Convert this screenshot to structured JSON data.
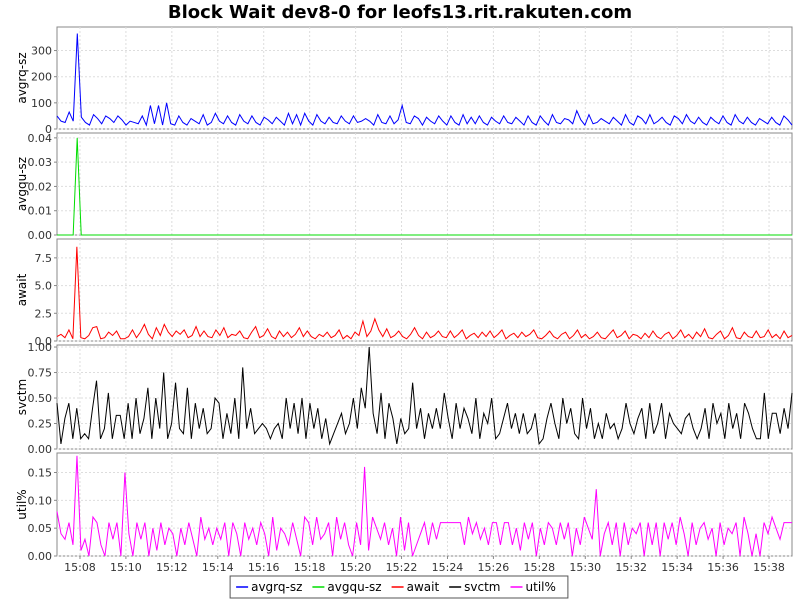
{
  "chart_data": {
    "type": "line",
    "title": "Block Wait dev8-0 for leofs13.rit.rakuten.com",
    "x_tick_labels": [
      "15:08",
      "15:10",
      "15:12",
      "15:14",
      "15:16",
      "15:18",
      "15:20",
      "15:22",
      "15:24",
      "15:26",
      "15:28",
      "15:30",
      "15:32",
      "15:34",
      "15:36",
      "15:38"
    ],
    "x_range": [
      "15:07",
      "15:39"
    ],
    "grid": true,
    "legend_position": "bottom",
    "panels": [
      {
        "name": "avgrq-sz",
        "ylabel": "avgrq-sz",
        "color": "#0000ff",
        "ylim": [
          0,
          390
        ],
        "y_ticks": [
          0,
          100,
          200,
          300
        ],
        "y_tick_labels": [
          "0",
          "100",
          "200",
          "300"
        ],
        "values": [
          50,
          30,
          25,
          65,
          30,
          365,
          45,
          25,
          15,
          55,
          40,
          20,
          50,
          40,
          25,
          50,
          35,
          15,
          30,
          25,
          20,
          50,
          15,
          90,
          20,
          90,
          15,
          100,
          20,
          15,
          50,
          25,
          15,
          40,
          30,
          20,
          55,
          15,
          25,
          60,
          30,
          20,
          50,
          25,
          15,
          55,
          30,
          20,
          50,
          25,
          15,
          45,
          35,
          20,
          45,
          30,
          15,
          60,
          20,
          55,
          15,
          60,
          30,
          15,
          55,
          30,
          20,
          45,
          25,
          20,
          50,
          30,
          20,
          50,
          25,
          30,
          40,
          30,
          15,
          55,
          25,
          20,
          50,
          20,
          35,
          90,
          25,
          20,
          50,
          40,
          15,
          45,
          30,
          20,
          50,
          30,
          15,
          50,
          25,
          15,
          55,
          20,
          45,
          20,
          50,
          25,
          15,
          45,
          30,
          20,
          50,
          25,
          20,
          45,
          30,
          15,
          50,
          25,
          15,
          50,
          30,
          15,
          55,
          25,
          20,
          40,
          35,
          20,
          70,
          35,
          15,
          55,
          20,
          25,
          40,
          30,
          20,
          45,
          30,
          15,
          55,
          25,
          15,
          50,
          40,
          20,
          55,
          20,
          30,
          45,
          25,
          15,
          50,
          40,
          20,
          55,
          30,
          20,
          45,
          25,
          15,
          45,
          30,
          20,
          50,
          25,
          15,
          55,
          30,
          20,
          45,
          25,
          15,
          40,
          30,
          20,
          45,
          25,
          15,
          50,
          35,
          15
        ]
      },
      {
        "name": "avgqu-sz",
        "ylabel": "avgqu-sz",
        "color": "#00dd00",
        "ylim": [
          0,
          0.042
        ],
        "y_ticks": [
          0,
          0.01,
          0.02,
          0.03,
          0.04
        ],
        "y_tick_labels": [
          "0.00",
          "0.01",
          "0.02",
          "0.03",
          "0.04"
        ],
        "values": [
          0,
          0,
          0,
          0,
          0,
          0.04,
          0,
          0,
          0,
          0,
          0,
          0,
          0,
          0,
          0,
          0,
          0,
          0,
          0,
          0,
          0,
          0,
          0,
          0,
          0,
          0,
          0,
          0,
          0,
          0,
          0,
          0,
          0,
          0,
          0,
          0,
          0,
          0,
          0,
          0,
          0,
          0,
          0,
          0,
          0,
          0,
          0,
          0,
          0,
          0,
          0,
          0,
          0,
          0,
          0,
          0,
          0,
          0,
          0,
          0,
          0,
          0,
          0,
          0,
          0,
          0,
          0,
          0,
          0,
          0,
          0,
          0,
          0,
          0,
          0,
          0,
          0,
          0,
          0,
          0,
          0,
          0,
          0,
          0,
          0,
          0,
          0,
          0,
          0,
          0,
          0,
          0,
          0,
          0,
          0,
          0,
          0,
          0,
          0,
          0,
          0,
          0,
          0,
          0,
          0,
          0,
          0,
          0,
          0,
          0,
          0,
          0,
          0,
          0,
          0,
          0,
          0,
          0,
          0,
          0,
          0,
          0,
          0,
          0,
          0,
          0,
          0,
          0,
          0,
          0,
          0,
          0,
          0,
          0,
          0,
          0,
          0,
          0,
          0,
          0,
          0,
          0,
          0,
          0,
          0,
          0,
          0,
          0,
          0,
          0,
          0,
          0,
          0,
          0,
          0,
          0,
          0,
          0,
          0,
          0,
          0,
          0,
          0,
          0,
          0,
          0,
          0,
          0,
          0,
          0,
          0,
          0,
          0,
          0,
          0,
          0,
          0,
          0,
          0,
          0,
          0,
          0,
          0
        ]
      },
      {
        "name": "await",
        "ylabel": "await",
        "color": "#ff0000",
        "ylim": [
          0,
          9.2
        ],
        "y_ticks": [
          0,
          2.5,
          5,
          7.5
        ],
        "y_tick_labels": [
          "0.0",
          "2.5",
          "5.0",
          "7.5"
        ],
        "values": [
          0.4,
          0.6,
          0.3,
          1.0,
          0.2,
          8.5,
          0.3,
          0.2,
          0.5,
          1.2,
          1.3,
          0.2,
          0.3,
          0.8,
          0.5,
          0.9,
          0.2,
          0.2,
          0.4,
          1.0,
          0.3,
          0.8,
          1.5,
          0.6,
          0.2,
          1.2,
          0.5,
          1.5,
          0.8,
          0.4,
          0.9,
          0.6,
          1.0,
          0.3,
          0.5,
          1.3,
          0.4,
          0.9,
          0.4,
          0.3,
          1.0,
          0.5,
          1.2,
          0.3,
          0.6,
          0.5,
          0.9,
          0.3,
          0.2,
          0.8,
          1.3,
          0.3,
          0.5,
          1.1,
          0.4,
          0.2,
          0.9,
          0.4,
          0.8,
          0.3,
          0.6,
          1.2,
          0.4,
          0.9,
          0.4,
          0.2,
          0.6,
          0.4,
          0.8,
          0.3,
          0.5,
          1.0,
          0.2,
          0.5,
          0.2,
          0.8,
          0.5,
          1.8,
          0.4,
          0.9,
          2.0,
          1.0,
          0.4,
          1.1,
          0.3,
          0.5,
          0.9,
          0.4,
          0.2,
          0.6,
          1.2,
          0.5,
          0.2,
          0.8,
          0.3,
          0.5,
          0.9,
          0.4,
          0.3,
          0.9,
          0.3,
          0.6,
          1.0,
          0.2,
          0.5,
          0.7,
          0.3,
          0.8,
          0.4,
          0.9,
          0.3,
          0.6,
          1.0,
          0.2,
          0.5,
          0.7,
          0.3,
          0.8,
          0.4,
          0.6,
          1.0,
          0.3,
          0.2,
          0.5,
          0.9,
          0.4,
          0.2,
          0.6,
          0.8,
          0.2,
          0.5,
          1.0,
          0.3,
          0.6,
          0.2,
          0.4,
          0.8,
          0.3,
          0.2,
          0.6,
          1.0,
          0.3,
          0.5,
          0.9,
          0.2,
          0.6,
          0.5,
          0.2,
          0.7,
          0.3,
          0.9,
          0.4,
          0.2,
          0.6,
          0.8,
          0.2,
          0.5,
          1.0,
          0.3,
          0.6,
          0.2,
          0.8,
          0.4,
          1.1,
          0.3,
          0.2,
          0.6,
          0.9,
          0.2,
          0.5,
          1.2,
          0.3,
          0.2,
          0.8,
          0.4,
          0.3,
          0.9,
          0.3,
          0.4,
          1.0,
          0.3,
          0.6,
          0.2,
          0.9,
          0.3,
          0.5
        ]
      },
      {
        "name": "svctm",
        "ylabel": "svctm",
        "color": "#000000",
        "ylim": [
          0,
          1.02
        ],
        "y_ticks": [
          0,
          0.25,
          0.5,
          0.75,
          1.0
        ],
        "y_tick_labels": [
          "0.00",
          "0.25",
          "0.50",
          "0.75",
          "1.00"
        ],
        "values": [
          0.45,
          0.05,
          0.3,
          0.45,
          0.1,
          0.4,
          0.1,
          0.15,
          0.1,
          0.4,
          0.67,
          0.1,
          0.2,
          0.55,
          0.1,
          0.33,
          0.33,
          0.1,
          0.45,
          0.1,
          0.5,
          0.15,
          0.3,
          0.6,
          0.1,
          0.5,
          0.2,
          0.75,
          0.1,
          0.25,
          0.65,
          0.2,
          0.15,
          0.6,
          0.1,
          0.45,
          0.2,
          0.4,
          0.15,
          0.2,
          0.5,
          0.45,
          0.1,
          0.35,
          0.15,
          0.5,
          0.1,
          0.8,
          0.2,
          0.4,
          0.15,
          0.2,
          0.25,
          0.2,
          0.1,
          0.2,
          0.25,
          0.1,
          0.5,
          0.2,
          0.45,
          0.15,
          0.5,
          0.1,
          0.45,
          0.2,
          0.4,
          0.1,
          0.3,
          0.05,
          0.15,
          0.25,
          0.35,
          0.15,
          0.25,
          0.5,
          0.2,
          0.6,
          0.4,
          1.0,
          0.35,
          0.15,
          0.55,
          0.1,
          0.45,
          0.3,
          0.05,
          0.3,
          0.15,
          0.2,
          0.65,
          0.2,
          0.4,
          0.1,
          0.35,
          0.2,
          0.4,
          0.2,
          0.55,
          0.3,
          0.1,
          0.45,
          0.2,
          0.4,
          0.3,
          0.15,
          0.5,
          0.1,
          0.35,
          0.25,
          0.5,
          0.1,
          0.15,
          0.3,
          0.45,
          0.2,
          0.35,
          0.15,
          0.35,
          0.15,
          0.2,
          0.35,
          0.05,
          0.1,
          0.3,
          0.45,
          0.25,
          0.1,
          0.5,
          0.25,
          0.4,
          0.15,
          0.1,
          0.5,
          0.2,
          0.4,
          0.1,
          0.25,
          0.1,
          0.35,
          0.2,
          0.25,
          0.1,
          0.2,
          0.45,
          0.25,
          0.15,
          0.3,
          0.4,
          0.1,
          0.45,
          0.15,
          0.25,
          0.45,
          0.1,
          0.35,
          0.25,
          0.2,
          0.15,
          0.3,
          0.35,
          0.2,
          0.1,
          0.2,
          0.4,
          0.1,
          0.45,
          0.25,
          0.35,
          0.1,
          0.45,
          0.2,
          0.35,
          0.1,
          0.45,
          0.35,
          0.2,
          0.1,
          0.1,
          0.55,
          0.1,
          0.35,
          0.35,
          0.15,
          0.4,
          0.2,
          0.55
        ]
      },
      {
        "name": "util%",
        "ylabel": "util%",
        "color": "#ff00ff",
        "ylim": [
          0,
          0.185
        ],
        "y_ticks": [
          0,
          0.05,
          0.1,
          0.15
        ],
        "y_tick_labels": [
          "0.00",
          "0.05",
          "0.10",
          "0.15"
        ],
        "values": [
          0.08,
          0.04,
          0.03,
          0.06,
          0.02,
          0.18,
          0.01,
          0.03,
          0.0,
          0.07,
          0.06,
          0.02,
          0.0,
          0.06,
          0.03,
          0.06,
          0.0,
          0.15,
          0.04,
          0.0,
          0.06,
          0.03,
          0.06,
          0.0,
          0.05,
          0.01,
          0.06,
          0.02,
          0.05,
          0.04,
          0.0,
          0.05,
          0.02,
          0.06,
          0.03,
          0.0,
          0.07,
          0.03,
          0.05,
          0.02,
          0.05,
          0.03,
          0.06,
          0.0,
          0.06,
          0.04,
          0.0,
          0.06,
          0.03,
          0.05,
          0.02,
          0.06,
          0.04,
          0.0,
          0.07,
          0.01,
          0.05,
          0.04,
          0.02,
          0.06,
          0.03,
          0.0,
          0.07,
          0.06,
          0.02,
          0.07,
          0.03,
          0.04,
          0.06,
          0.0,
          0.07,
          0.03,
          0.06,
          0.02,
          0.0,
          0.06,
          0.02,
          0.16,
          0.01,
          0.07,
          0.05,
          0.03,
          0.06,
          0.02,
          0.05,
          0.0,
          0.07,
          0.01,
          0.06,
          0.0,
          0.02,
          0.04,
          0.06,
          0.02,
          0.06,
          0.03,
          0.06,
          0.06,
          0.06,
          0.06,
          0.06,
          0.06,
          0.02,
          0.07,
          0.04,
          0.06,
          0.03,
          0.05,
          0.02,
          0.06,
          0.06,
          0.02,
          0.06,
          0.06,
          0.02,
          0.05,
          0.01,
          0.06,
          0.03,
          0.06,
          0.0,
          0.05,
          0.02,
          0.06,
          0.05,
          0.02,
          0.06,
          0.03,
          0.06,
          0.0,
          0.05,
          0.02,
          0.07,
          0.05,
          0.03,
          0.12,
          0.0,
          0.04,
          0.06,
          0.02,
          0.06,
          0.0,
          0.06,
          0.02,
          0.05,
          0.04,
          0.06,
          0.0,
          0.06,
          0.02,
          0.06,
          0.0,
          0.06,
          0.03,
          0.06,
          0.02,
          0.07,
          0.04,
          0.0,
          0.06,
          0.02,
          0.05,
          0.06,
          0.03,
          0.05,
          0.0,
          0.06,
          0.02,
          0.05,
          0.04,
          0.06,
          0.0,
          0.07,
          0.04,
          0.0,
          0.04,
          0.0,
          0.06,
          0.04,
          0.07,
          0.05,
          0.03,
          0.06,
          0.06,
          0.06
        ]
      }
    ]
  }
}
